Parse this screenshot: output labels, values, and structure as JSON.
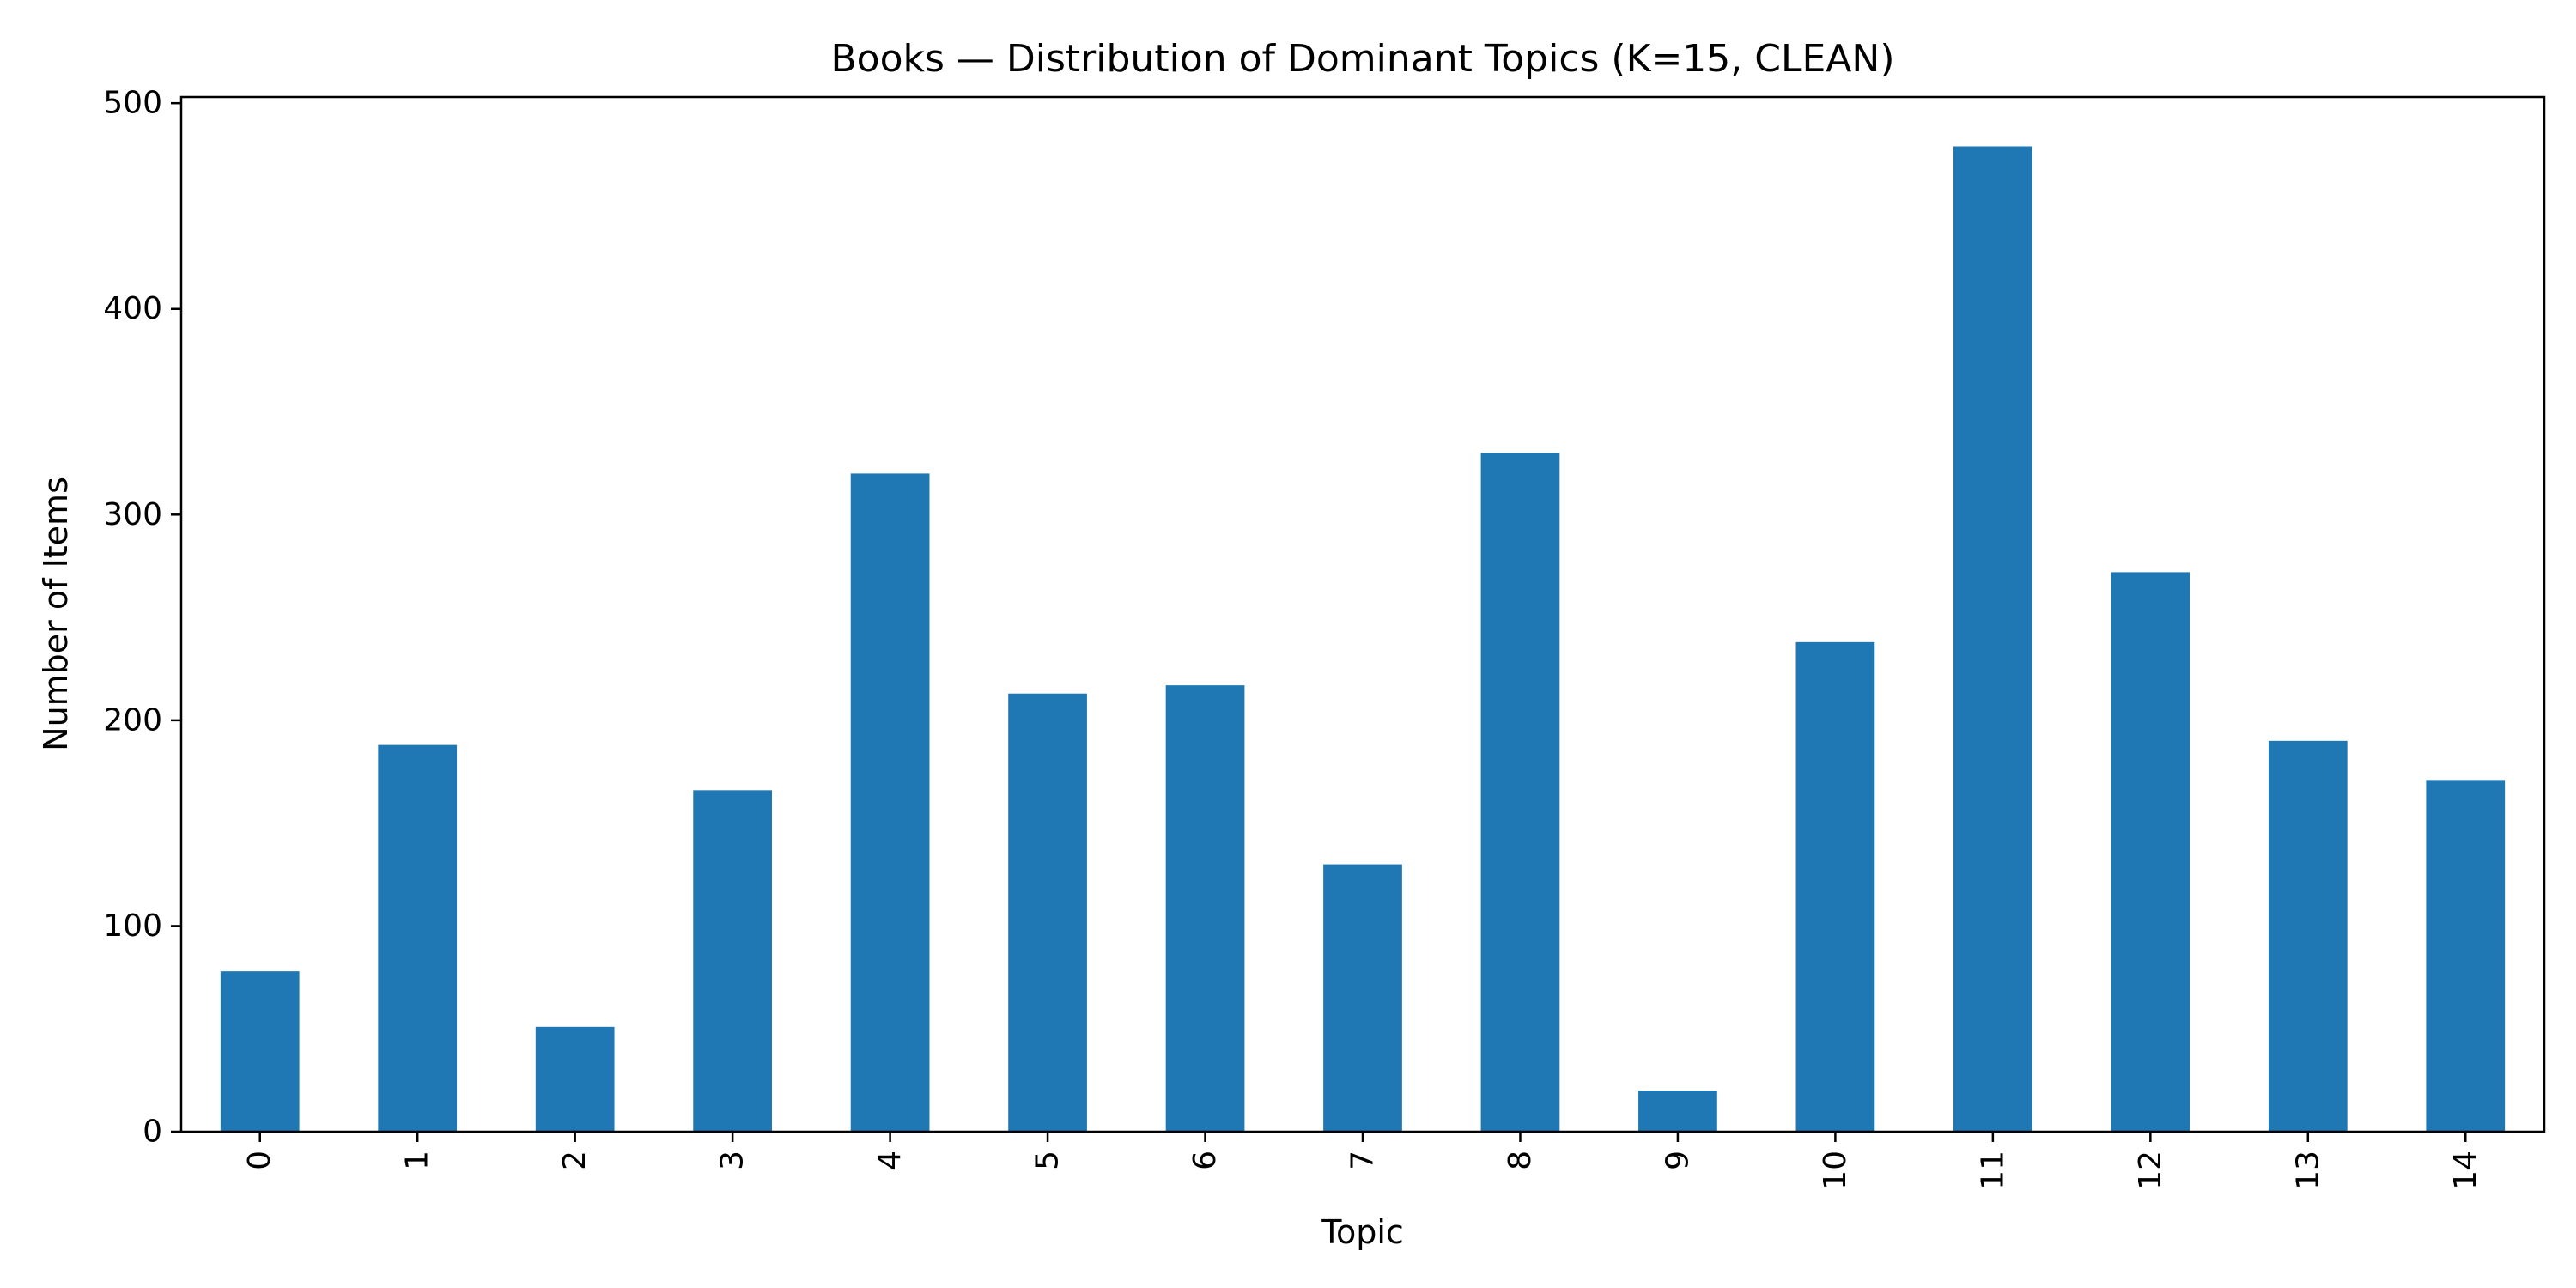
{
  "chart_data": {
    "type": "bar",
    "title": "Books — Distribution of Dominant Topics (K=15, CLEAN)",
    "xlabel": "Topic",
    "ylabel": "Number of Items",
    "categories": [
      "0",
      "1",
      "2",
      "3",
      "4",
      "5",
      "6",
      "7",
      "8",
      "9",
      "10",
      "11",
      "12",
      "13",
      "14"
    ],
    "values": [
      78,
      188,
      51,
      166,
      320,
      213,
      217,
      130,
      330,
      20,
      238,
      479,
      272,
      190,
      171
    ],
    "ylim": [
      0,
      503
    ],
    "yticks": [
      0,
      100,
      200,
      300,
      400,
      500
    ],
    "grid": false,
    "legend": "none",
    "bar_color": "#1f77b4",
    "x_tick_rotation": "vertical"
  }
}
